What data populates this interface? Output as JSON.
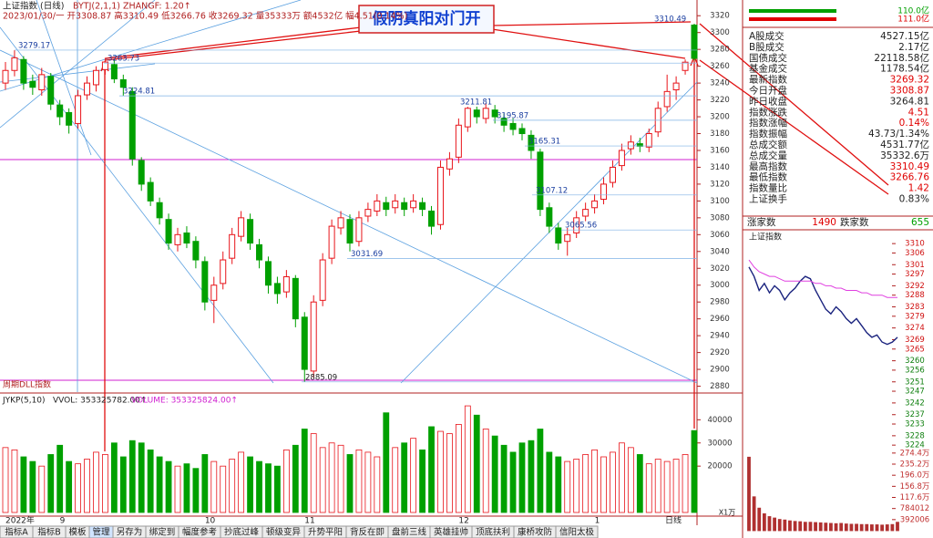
{
  "header": {
    "name": "上证指数 (日线)",
    "indicator": "BYTJ(2,1,1)  ZHANGF: 1.20↑",
    "quote": "2023/01/30/一 开3308.87 高3310.49 低3266.76 收3269.32 量35333万 额4532亿 幅4.51(0.14%)"
  },
  "callout": "假阴真阳对门开",
  "chart_data": [
    {
      "type": "candlestick",
      "note": "周期DLL指数",
      "up_color": "#e8141a",
      "down_color": "#00a000",
      "categories": [
        "2022年",
        null,
        null,
        null,
        null,
        null,
        "9",
        null,
        null,
        null,
        null,
        null,
        null,
        null,
        null,
        null,
        null,
        null,
        null,
        null,
        null,
        null,
        "10",
        null,
        null,
        null,
        null,
        null,
        null,
        null,
        null,
        null,
        null,
        "11",
        null,
        null,
        null,
        null,
        null,
        null,
        null,
        null,
        null,
        null,
        null,
        null,
        null,
        null,
        null,
        null,
        "12",
        null,
        null,
        null,
        null,
        null,
        null,
        null,
        null,
        null,
        null,
        null,
        null,
        null,
        null,
        "1",
        null,
        null,
        null,
        null,
        null,
        null,
        null,
        null,
        null,
        null,
        null
      ],
      "open": [
        3240,
        3255,
        3268,
        3242,
        3232,
        3248,
        3214,
        3205,
        3192,
        3226,
        3238,
        3256,
        3262,
        3244,
        3230,
        3148,
        3122,
        3098,
        3078,
        3048,
        3062,
        3052,
        3028,
        2982,
        3002,
        3032,
        3058,
        3078,
        3048,
        3028,
        3002,
        2992,
        3008,
        2962,
        2898,
        2982,
        3032,
        3068,
        3078,
        3052,
        3082,
        3088,
        3098,
        3092,
        3098,
        3092,
        3098,
        3088,
        3072,
        3138,
        3152,
        3188,
        3208,
        3198,
        3208,
        3198,
        3192,
        3186,
        3178,
        3158,
        3092,
        3068,
        3052,
        3062,
        3082,
        3092,
        3102,
        3122,
        3142,
        3162,
        3168,
        3164,
        3182,
        3212,
        3232,
        3255,
        3308.87
      ],
      "high": [
        3265,
        3279,
        3272,
        3250,
        3258,
        3252,
        3220,
        3210,
        3232,
        3248,
        3260,
        3270,
        3268,
        3250,
        3235,
        3152,
        3128,
        3104,
        3085,
        3068,
        3070,
        3058,
        3034,
        3010,
        3040,
        3068,
        3088,
        3085,
        3055,
        3034,
        3010,
        3018,
        3012,
        2968,
        2988,
        3038,
        3078,
        3088,
        3084,
        3088,
        3098,
        3108,
        3105,
        3108,
        3104,
        3108,
        3104,
        3094,
        3148,
        3158,
        3198,
        3211.81,
        3212,
        3216,
        3214,
        3204,
        3198,
        3192,
        3184,
        3162,
        3098,
        3074,
        3068,
        3088,
        3098,
        3108,
        3128,
        3148,
        3168,
        3178,
        3175,
        3186,
        3218,
        3250,
        3248,
        3268,
        3310.49
      ],
      "low": [
        3232,
        3248,
        3232,
        3226,
        3225,
        3208,
        3190,
        3180,
        3186,
        3220,
        3230,
        3250,
        3240,
        3225,
        3142,
        3112,
        3094,
        3072,
        3042,
        3040,
        3044,
        3020,
        2970,
        2955,
        2995,
        3025,
        3052,
        3042,
        3020,
        2990,
        2978,
        2985,
        2950,
        2885.09,
        2890,
        2975,
        3025,
        3060,
        3040,
        3046,
        3075,
        3082,
        3082,
        3085,
        3082,
        3086,
        3082,
        3060,
        3066,
        3130,
        3145,
        3182,
        3192,
        3192,
        3192,
        3182,
        3178,
        3172,
        3150,
        3082,
        3062,
        3042,
        3035,
        3056,
        3076,
        3085,
        3096,
        3116,
        3136,
        3155,
        3158,
        3158,
        3176,
        3206,
        3220,
        3250,
        3266.76
      ],
      "close": [
        3255,
        3270,
        3240,
        3235,
        3250,
        3215,
        3200,
        3190,
        3225,
        3240,
        3255,
        3265,
        3245,
        3235,
        3150,
        3120,
        3100,
        3080,
        3050,
        3060,
        3050,
        3030,
        2980,
        3000,
        3030,
        3060,
        3080,
        3050,
        3030,
        3000,
        2990,
        3010,
        2960,
        2900,
        2980,
        3030,
        3070,
        3080,
        3050,
        3080,
        3090,
        3100,
        3090,
        3100,
        3090,
        3100,
        3090,
        3070,
        3140,
        3150,
        3190,
        3210,
        3200,
        3210,
        3200,
        3190,
        3185,
        3180,
        3160,
        3090,
        3070,
        3050,
        3060,
        3080,
        3090,
        3100,
        3120,
        3140,
        3160,
        3170,
        3165,
        3180,
        3210,
        3230,
        3240,
        3264.81,
        3269.32
      ],
      "ylim": [
        2873,
        3330
      ],
      "yticks": [
        2880,
        2900,
        2920,
        2940,
        2960,
        2980,
        3000,
        3020,
        3040,
        3060,
        3080,
        3100,
        3120,
        3140,
        3160,
        3180,
        3200,
        3220,
        3240,
        3260,
        3280,
        3300,
        3320
      ],
      "levels": [
        3279.17,
        3263.73,
        3224.81,
        3211.81,
        3195.87,
        3165.31,
        3107.12,
        3065.56,
        3031.69,
        2885.09,
        3310.49
      ]
    },
    {
      "type": "bar",
      "title": "JYKP(5,10)",
      "subtitle": "VVOL: 353325782.00↑",
      "caption": "VOLUME: 353325824.00↑",
      "unit": "X1万",
      "values": [
        28000,
        27000,
        24000,
        22000,
        20000,
        25000,
        29000,
        22000,
        21000,
        23000,
        26000,
        25000,
        30000,
        24000,
        31000,
        30000,
        27000,
        24000,
        22000,
        20000,
        21000,
        19000,
        25000,
        22000,
        20000,
        23000,
        26000,
        24000,
        22000,
        21000,
        20000,
        27000,
        29000,
        36000,
        34000,
        28000,
        30000,
        29000,
        25000,
        27000,
        26000,
        24000,
        43000,
        28000,
        30000,
        32000,
        27000,
        37000,
        35000,
        34000,
        38000,
        46000,
        42000,
        36000,
        33000,
        29000,
        26000,
        30000,
        31000,
        36000,
        26000,
        24000,
        22000,
        23000,
        25000,
        27000,
        24000,
        26000,
        30000,
        28000,
        25000,
        21000,
        23000,
        22000,
        23000,
        25000,
        35332
      ],
      "ylim": [
        0,
        48000
      ],
      "yticks": [
        20000,
        30000,
        40000
      ]
    },
    {
      "type": "line",
      "title": "上证指数",
      "series": [
        {
          "color": "#1a237e",
          "values": [
            3300,
            3296,
            3290,
            3293,
            3289,
            3292,
            3290,
            3286,
            3289,
            3291,
            3294,
            3296,
            3295,
            3290,
            3286,
            3282,
            3280,
            3283,
            3281,
            3278,
            3276,
            3278,
            3275,
            3272,
            3270,
            3271,
            3268,
            3267,
            3268,
            3270
          ]
        },
        {
          "color": "#e040e0",
          "values": [
            3303,
            3300,
            3298,
            3297,
            3296,
            3296,
            3295,
            3294,
            3294,
            3294,
            3294,
            3294,
            3294,
            3293,
            3293,
            3292,
            3292,
            3291,
            3291,
            3290,
            3290,
            3290,
            3289,
            3289,
            3288,
            3288,
            3288,
            3287,
            3287,
            3287
          ]
        }
      ],
      "ylim": [
        3222.5,
        3312
      ],
      "yticks": [
        3310,
        3306,
        3301,
        3297,
        3292,
        3288,
        3283,
        3279,
        3274,
        3269,
        3265,
        3260,
        3256,
        3251,
        3247,
        3242,
        3237,
        3233,
        3228,
        3224
      ]
    },
    {
      "type": "bar",
      "color": "#b03030",
      "values": [
        2600000,
        1200000,
        800000,
        600000,
        500000,
        450000,
        400000,
        380000,
        350000,
        330000,
        320000,
        300000,
        300000,
        290000,
        280000,
        270000,
        260000,
        250000,
        260000,
        240000,
        230000,
        230000,
        220000,
        220000,
        210000,
        210000,
        200000,
        210000,
        220000,
        300000
      ],
      "ylim": [
        0,
        2900000
      ],
      "yticks": [
        {
          "value": 2744000,
          "label": "274.4万"
        },
        {
          "value": 2352000,
          "label": "235.2万"
        },
        {
          "value": 1960000,
          "label": "196.0万"
        },
        {
          "value": 1568000,
          "label": "156.8万"
        },
        {
          "value": 1176000,
          "label": "117.6万"
        },
        {
          "value": 784012,
          "label": "784012"
        },
        {
          "value": 392006,
          "label": "392006"
        }
      ]
    }
  ],
  "panel": {
    "bars": [
      {
        "label": "110.0亿",
        "color": "#00a000"
      },
      {
        "label": "111.0亿",
        "color": "#e00000"
      }
    ],
    "rows": [
      {
        "label": "A股成交",
        "value": "4527.15亿",
        "color": "#222"
      },
      {
        "label": "B股成交",
        "value": "2.17亿",
        "color": "#222"
      },
      {
        "label": "国债成交",
        "value": "22118.58亿",
        "color": "#222"
      },
      {
        "label": "基金成交",
        "value": "1178.54亿",
        "color": "#222"
      },
      {
        "label": "最新指数",
        "value": "3269.32",
        "color": "#e00000"
      },
      {
        "label": "今日开盘",
        "value": "3308.87",
        "color": "#e00000"
      },
      {
        "label": "昨日收盘",
        "value": "3264.81",
        "color": "#222"
      },
      {
        "label": "指数涨跌",
        "value": "4.51",
        "color": "#e00000"
      },
      {
        "label": "指数涨幅",
        "value": "0.14%",
        "color": "#e00000"
      },
      {
        "label": "指数振幅",
        "value": "43.73/1.34%",
        "color": "#222"
      },
      {
        "label": "总成交额",
        "value": "4531.77亿",
        "color": "#222"
      },
      {
        "label": "总成交量",
        "value": "35332.6万",
        "color": "#222"
      },
      {
        "label": "最高指数",
        "value": "3310.49",
        "color": "#e00000"
      },
      {
        "label": "最低指数",
        "value": "3266.76",
        "color": "#e00000"
      },
      {
        "label": "指数量比",
        "value": "1.42",
        "color": "#e00000"
      },
      {
        "label": "上证换手",
        "value": "0.83%",
        "color": "#222"
      }
    ],
    "breadth": {
      "up_label": "涨家数",
      "up": "1490",
      "down_label": "跌家数",
      "down": "655"
    }
  },
  "period": "日线",
  "tabs": [
    "指标A",
    "指标B",
    "模板",
    "管理",
    "另存为",
    "绑定到",
    "幅度参考",
    "抄底过峰",
    "顿级变异",
    "升势平阳",
    "背反在即",
    "盘前三线",
    "英雄挂帅",
    "顶底扶利",
    "康桥攻防",
    "信阳太极"
  ]
}
